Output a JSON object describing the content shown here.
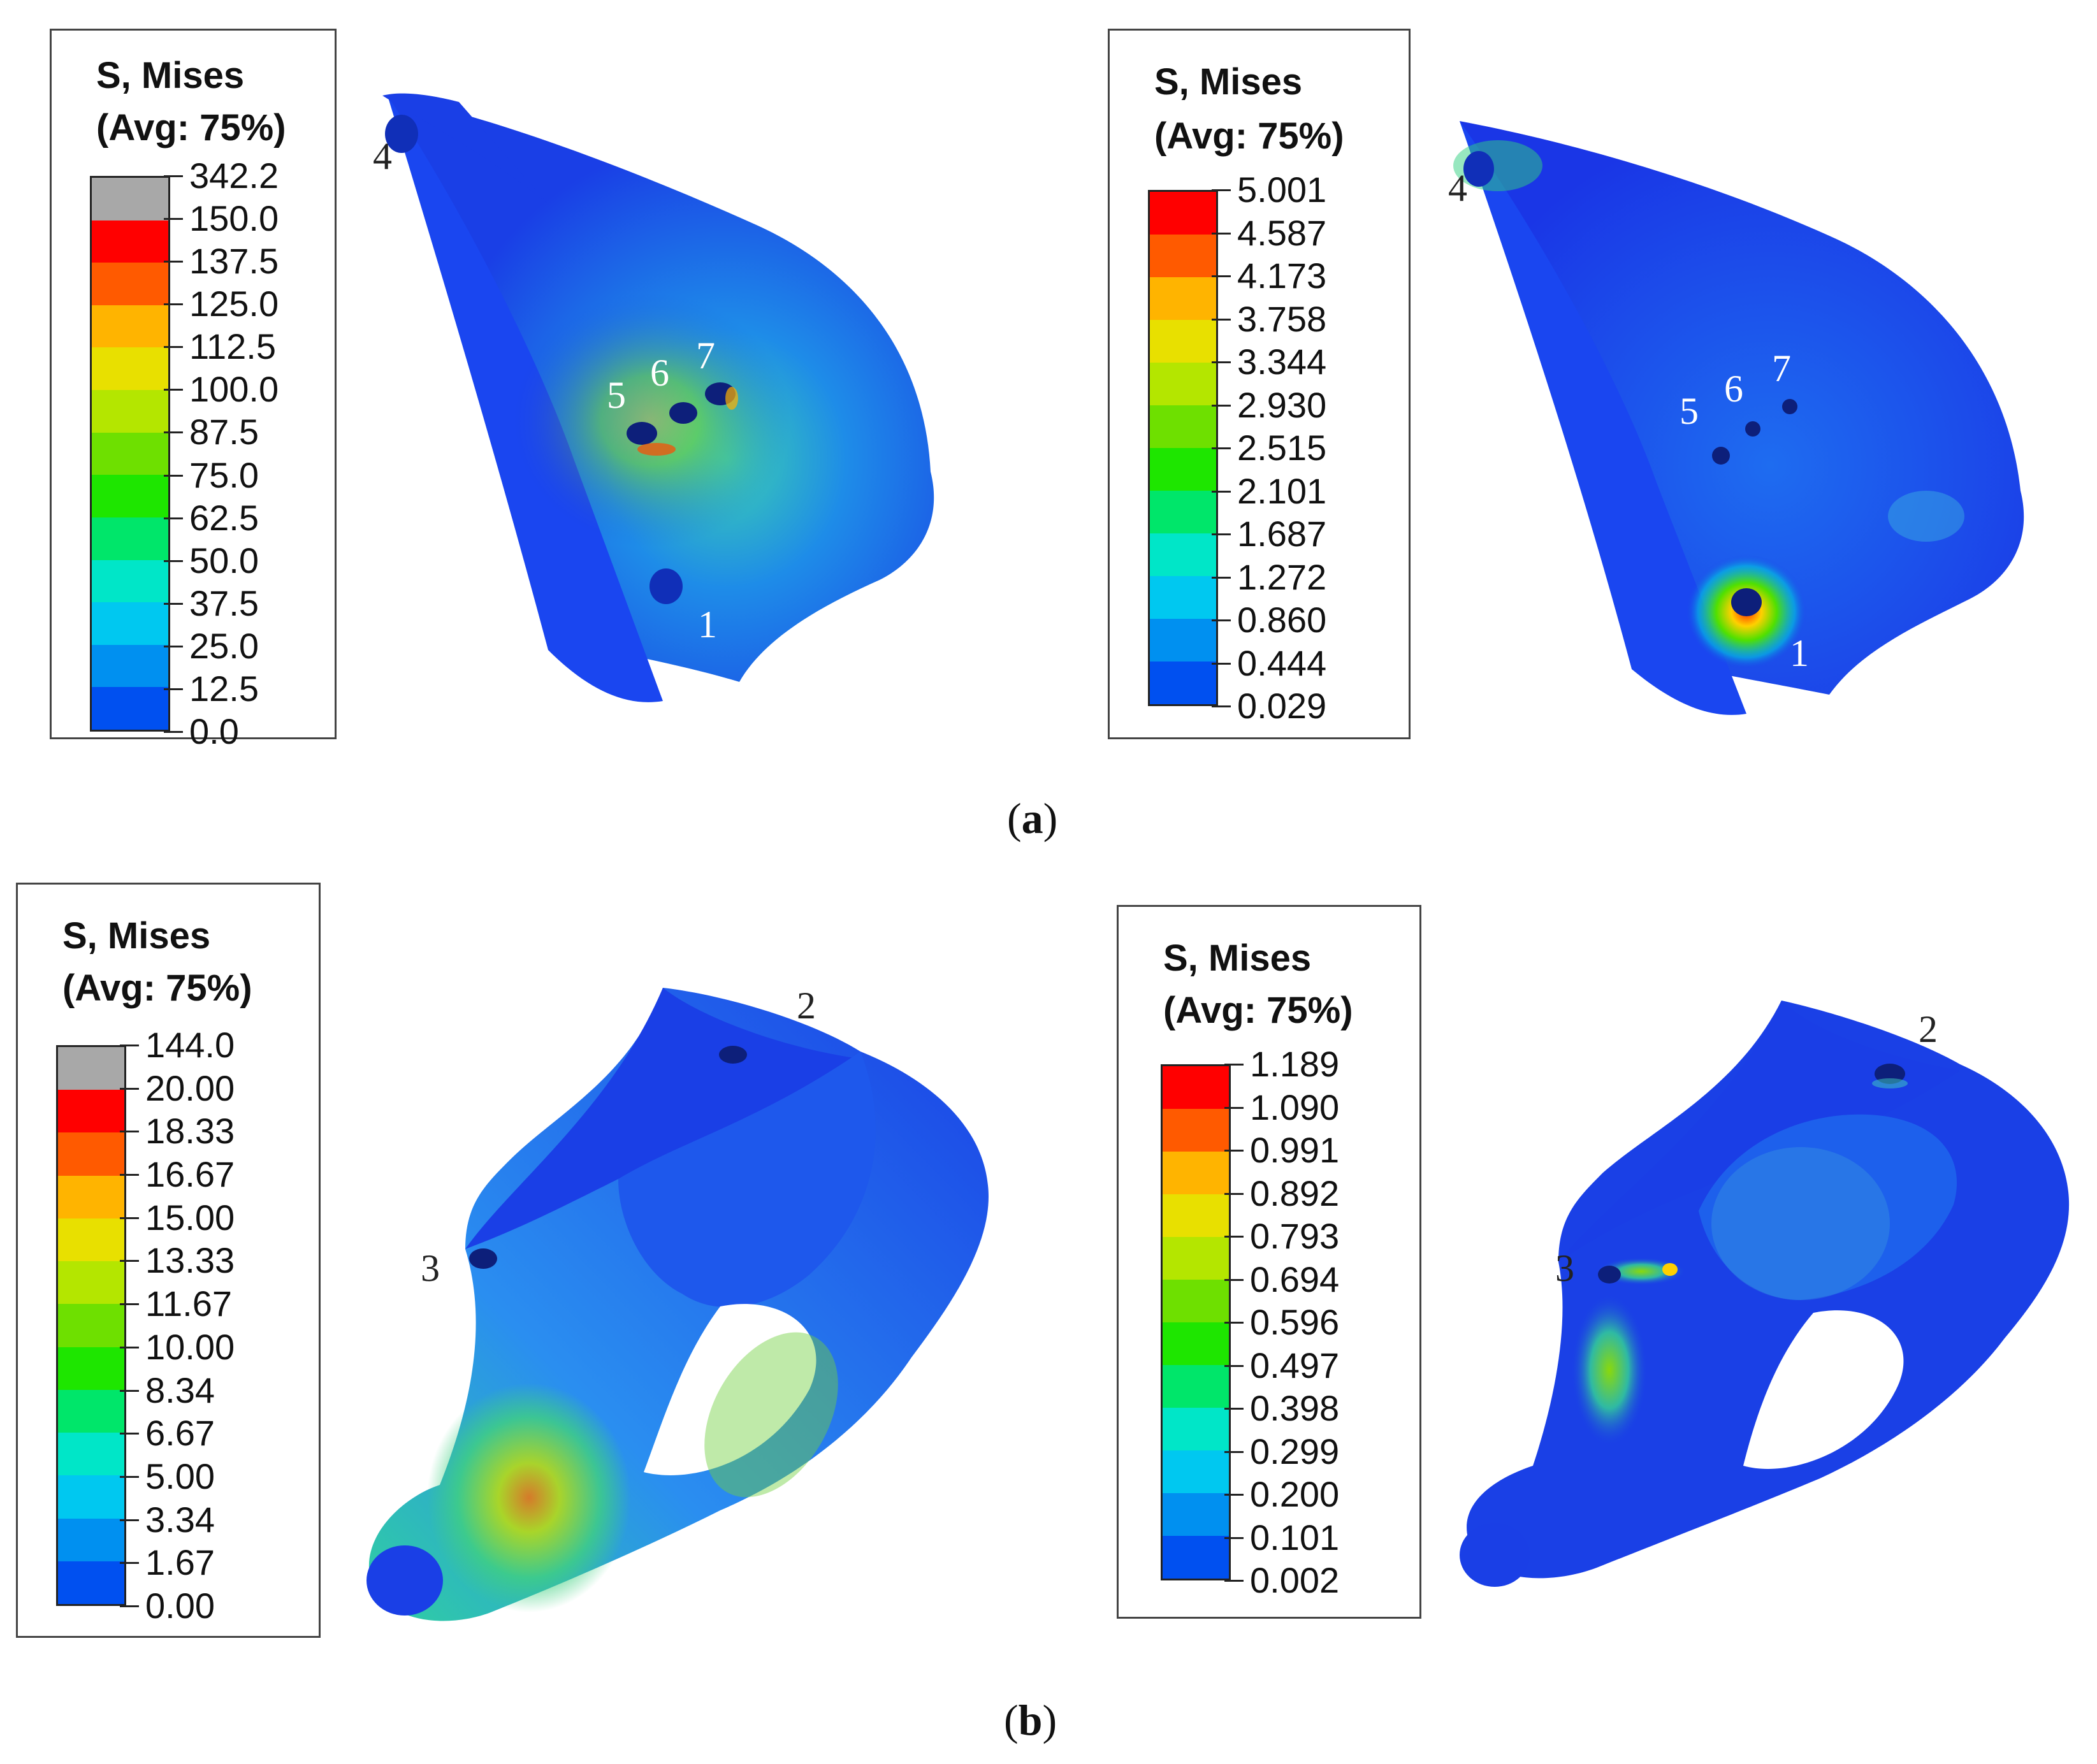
{
  "panels": [
    {
      "id": "a-left",
      "legend": {
        "title_line1": "S, Mises",
        "title_line2": "(Avg: 75%)",
        "values": [
          "342.2",
          "150.0",
          "137.5",
          "125.0",
          "112.5",
          "100.0",
          "87.5",
          "75.0",
          "62.5",
          "50.0",
          "37.5",
          "25.0",
          "12.5",
          "0.0"
        ],
        "has_gray_cap": true
      },
      "markers": [
        "4",
        "5",
        "6",
        "7",
        "1"
      ]
    },
    {
      "id": "a-right",
      "legend": {
        "title_line1": "S, Mises",
        "title_line2": "(Avg: 75%)",
        "values": [
          "5.001",
          "4.587",
          "4.173",
          "3.758",
          "3.344",
          "2.930",
          "2.515",
          "2.101",
          "1.687",
          "1.272",
          "0.860",
          "0.444",
          "0.029"
        ],
        "has_gray_cap": false
      },
      "markers": [
        "4",
        "5",
        "6",
        "7",
        "1"
      ]
    },
    {
      "id": "b-left",
      "legend": {
        "title_line1": "S, Mises",
        "title_line2": "(Avg: 75%)",
        "values": [
          "144.0",
          "20.00",
          "18.33",
          "16.67",
          "15.00",
          "13.33",
          "11.67",
          "10.00",
          "8.34",
          "6.67",
          "5.00",
          "3.34",
          "1.67",
          "0.00"
        ],
        "has_gray_cap": true
      },
      "markers": [
        "2",
        "3"
      ]
    },
    {
      "id": "b-right",
      "legend": {
        "title_line1": "S, Mises",
        "title_line2": "(Avg: 75%)",
        "values": [
          "1.189",
          "1.090",
          "0.991",
          "0.892",
          "0.793",
          "0.694",
          "0.596",
          "0.497",
          "0.398",
          "0.299",
          "0.200",
          "0.101",
          "0.002"
        ],
        "has_gray_cap": false
      },
      "markers": [
        "2",
        "3"
      ]
    }
  ],
  "captions": {
    "a": "a",
    "b": "b"
  },
  "colors": {
    "contour": [
      "#ff0000",
      "#ff5a00",
      "#ffb400",
      "#e8e000",
      "#b4e600",
      "#6ee000",
      "#1ee600",
      "#00e66a",
      "#00e6c8",
      "#00c8f0",
      "#0090f0",
      "#0050f0",
      "#0020f0"
    ],
    "gray_cap": "#a8a8a8",
    "bone_base": "#1a3fe6"
  }
}
